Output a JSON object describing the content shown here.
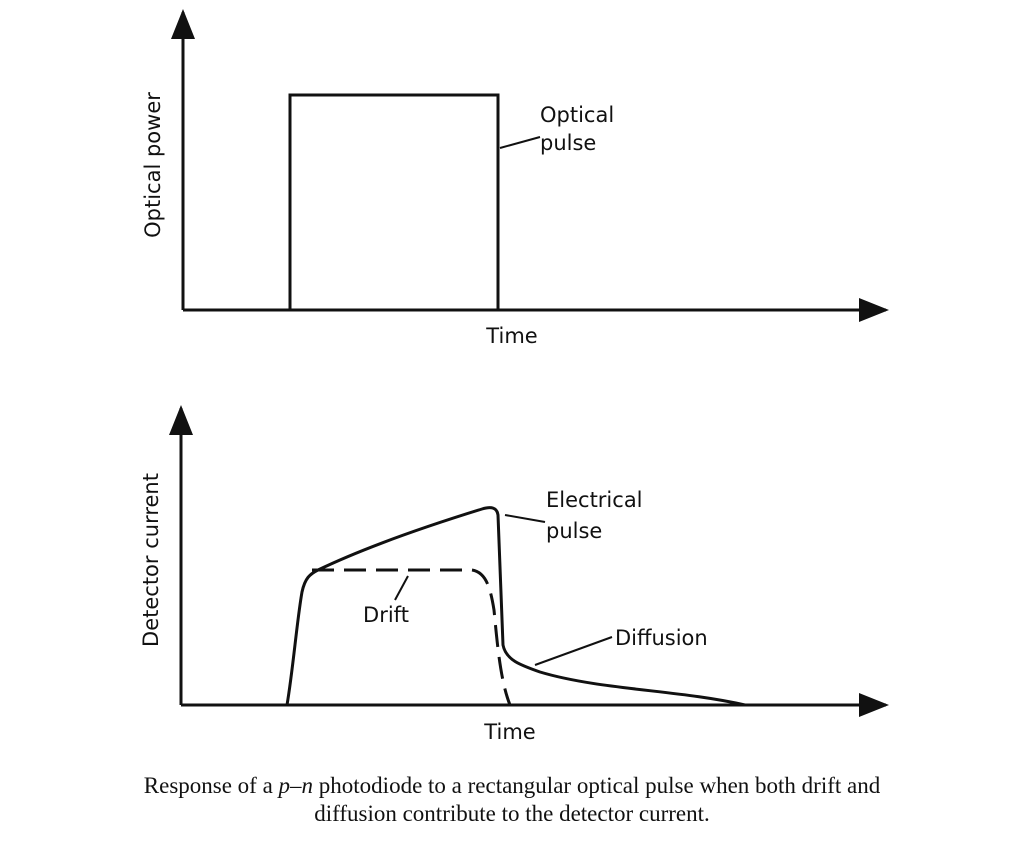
{
  "top_plot": {
    "y_label": "Optical power",
    "x_label": "Time",
    "annotation": [
      "Optical",
      "pulse"
    ]
  },
  "bottom_plot": {
    "y_label": "Detector current",
    "x_label": "Time",
    "electrical_label": [
      "Electrical",
      "pulse"
    ],
    "drift_label": "Drift",
    "diffusion_label": "Diffusion"
  },
  "caption": {
    "line1": [
      "Response of a ",
      "p–n",
      " photodiode to a rectangular optical pulse when both drift and"
    ],
    "line2": "diffusion contribute to the detector current."
  }
}
